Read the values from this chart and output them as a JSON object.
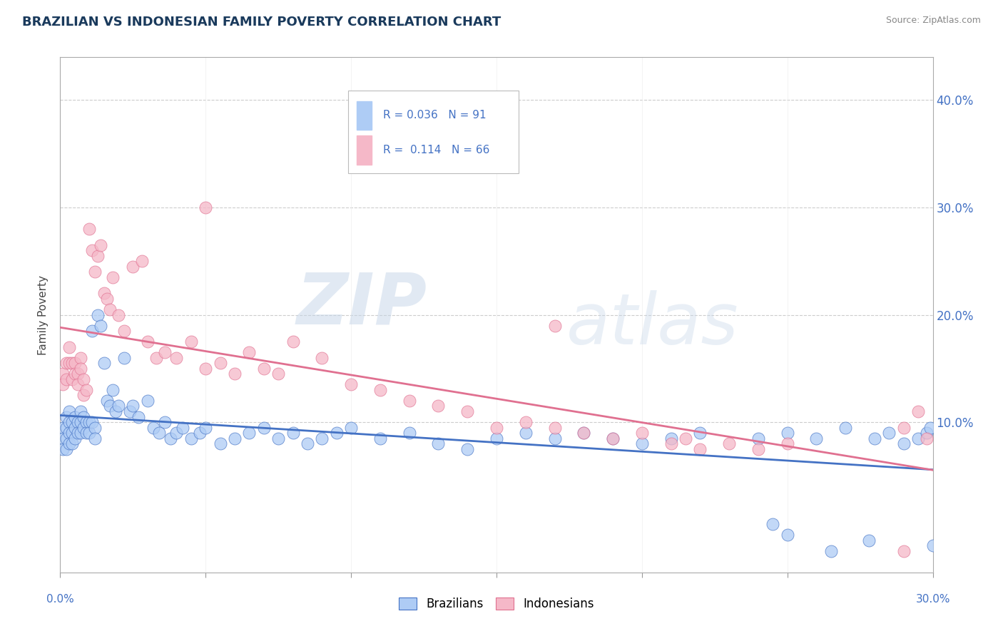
{
  "title": "BRAZILIAN VS INDONESIAN FAMILY POVERTY CORRELATION CHART",
  "source": "Source: ZipAtlas.com",
  "ylabel": "Family Poverty",
  "right_yticks": [
    "10.0%",
    "20.0%",
    "30.0%",
    "40.0%"
  ],
  "right_ytick_vals": [
    0.1,
    0.2,
    0.3,
    0.4
  ],
  "xlim": [
    0.0,
    0.3
  ],
  "ylim": [
    -0.04,
    0.44
  ],
  "brazilian_color": "#aeccf5",
  "indonesian_color": "#f5b8c8",
  "trend_blue": "#4472c4",
  "trend_pink": "#e07090",
  "legend_R_blue": "0.036",
  "legend_N_blue": "91",
  "legend_R_pink": "0.114",
  "legend_N_pink": "66",
  "watermark_zip": "ZIP",
  "watermark_atlas": "atlas",
  "brazil_x": [
    0.001,
    0.001,
    0.001,
    0.002,
    0.002,
    0.002,
    0.002,
    0.003,
    0.003,
    0.003,
    0.003,
    0.004,
    0.004,
    0.004,
    0.005,
    0.005,
    0.005,
    0.006,
    0.006,
    0.007,
    0.007,
    0.007,
    0.008,
    0.008,
    0.009,
    0.009,
    0.01,
    0.01,
    0.011,
    0.011,
    0.012,
    0.012,
    0.013,
    0.014,
    0.015,
    0.016,
    0.017,
    0.018,
    0.019,
    0.02,
    0.022,
    0.024,
    0.025,
    0.027,
    0.03,
    0.032,
    0.034,
    0.036,
    0.038,
    0.04,
    0.042,
    0.045,
    0.048,
    0.05,
    0.055,
    0.06,
    0.065,
    0.07,
    0.075,
    0.08,
    0.085,
    0.09,
    0.095,
    0.1,
    0.11,
    0.12,
    0.13,
    0.14,
    0.15,
    0.16,
    0.17,
    0.18,
    0.19,
    0.2,
    0.21,
    0.22,
    0.24,
    0.25,
    0.26,
    0.27,
    0.28,
    0.285,
    0.29,
    0.295,
    0.298,
    0.299,
    0.3,
    0.278,
    0.265,
    0.25,
    0.245
  ],
  "brazil_y": [
    0.095,
    0.085,
    0.075,
    0.105,
    0.095,
    0.085,
    0.075,
    0.11,
    0.1,
    0.09,
    0.08,
    0.1,
    0.09,
    0.08,
    0.105,
    0.095,
    0.085,
    0.1,
    0.09,
    0.11,
    0.1,
    0.09,
    0.105,
    0.095,
    0.1,
    0.09,
    0.1,
    0.09,
    0.185,
    0.1,
    0.095,
    0.085,
    0.2,
    0.19,
    0.155,
    0.12,
    0.115,
    0.13,
    0.11,
    0.115,
    0.16,
    0.11,
    0.115,
    0.105,
    0.12,
    0.095,
    0.09,
    0.1,
    0.085,
    0.09,
    0.095,
    0.085,
    0.09,
    0.095,
    0.08,
    0.085,
    0.09,
    0.095,
    0.085,
    0.09,
    0.08,
    0.085,
    0.09,
    0.095,
    0.085,
    0.09,
    0.08,
    0.075,
    0.085,
    0.09,
    0.085,
    0.09,
    0.085,
    0.08,
    0.085,
    0.09,
    0.085,
    0.09,
    0.085,
    0.095,
    0.085,
    0.09,
    0.08,
    0.085,
    0.09,
    0.095,
    -0.015,
    -0.01,
    -0.02,
    -0.005,
    0.005
  ],
  "indonesia_x": [
    0.001,
    0.001,
    0.002,
    0.002,
    0.003,
    0.003,
    0.004,
    0.004,
    0.005,
    0.005,
    0.006,
    0.006,
    0.007,
    0.007,
    0.008,
    0.008,
    0.009,
    0.01,
    0.011,
    0.012,
    0.013,
    0.014,
    0.015,
    0.016,
    0.017,
    0.018,
    0.02,
    0.022,
    0.025,
    0.028,
    0.03,
    0.033,
    0.036,
    0.04,
    0.045,
    0.05,
    0.055,
    0.06,
    0.065,
    0.07,
    0.075,
    0.08,
    0.09,
    0.1,
    0.11,
    0.12,
    0.13,
    0.14,
    0.15,
    0.16,
    0.17,
    0.18,
    0.19,
    0.2,
    0.21,
    0.215,
    0.22,
    0.23,
    0.24,
    0.25,
    0.29,
    0.295,
    0.298,
    0.17,
    0.05,
    0.29
  ],
  "indonesia_y": [
    0.145,
    0.135,
    0.155,
    0.14,
    0.17,
    0.155,
    0.155,
    0.14,
    0.155,
    0.145,
    0.145,
    0.135,
    0.16,
    0.15,
    0.14,
    0.125,
    0.13,
    0.28,
    0.26,
    0.24,
    0.255,
    0.265,
    0.22,
    0.215,
    0.205,
    0.235,
    0.2,
    0.185,
    0.245,
    0.25,
    0.175,
    0.16,
    0.165,
    0.16,
    0.175,
    0.15,
    0.155,
    0.145,
    0.165,
    0.15,
    0.145,
    0.175,
    0.16,
    0.135,
    0.13,
    0.12,
    0.115,
    0.11,
    0.095,
    0.1,
    0.095,
    0.09,
    0.085,
    0.09,
    0.08,
    0.085,
    0.075,
    0.08,
    0.075,
    0.08,
    0.095,
    0.11,
    0.085,
    0.19,
    0.3,
    -0.02
  ]
}
